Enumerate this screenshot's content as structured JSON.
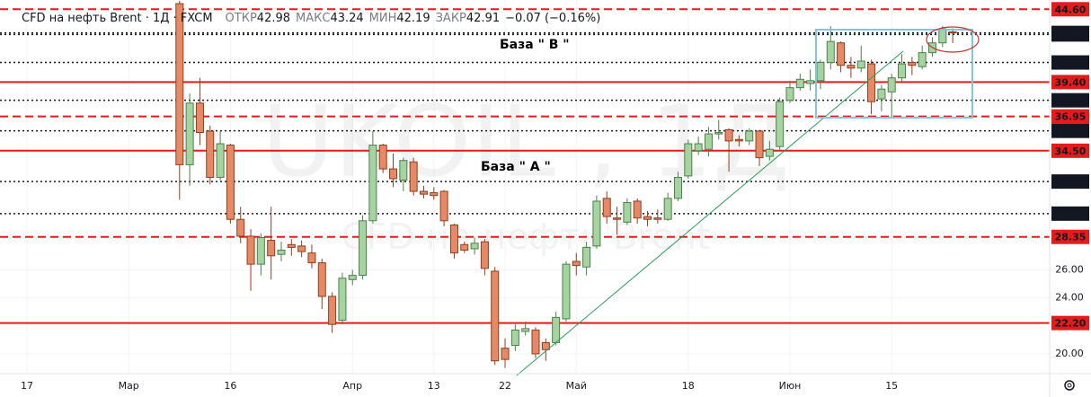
{
  "chart_data": {
    "type": "candlestick",
    "title": "CFD на нефть Brent · 1Д · FXCM",
    "header_info": [
      {
        "name": "ОТКР",
        "value": 42.98
      },
      {
        "name": "МАКС",
        "value": 43.24
      },
      {
        "name": "МИН",
        "value": 42.19
      },
      {
        "name": "ЗАКР",
        "value": 42.91
      }
    ],
    "change": {
      "value": -0.07,
      "label": "−0.07"
    },
    "change_pct": {
      "value": -0.16,
      "label": "(−0.16%)"
    },
    "watermark": [
      "UKOIL , 1Д",
      "CFD на нефть Brent"
    ],
    "annotations": [
      "База \" В \"",
      "База \" А \""
    ],
    "categories": [
      "17",
      null,
      null,
      null,
      null,
      null,
      null,
      null,
      null,
      null,
      "Мар",
      null,
      null,
      null,
      null,
      null,
      null,
      null,
      null,
      null,
      "16",
      null,
      null,
      null,
      null,
      null,
      null,
      null,
      null,
      null,
      null,
      null,
      "Апр",
      null,
      null,
      null,
      null,
      null,
      null,
      null,
      "13",
      null,
      null,
      null,
      null,
      null,
      null,
      "22",
      null,
      null,
      null,
      null,
      null,
      null,
      "Май",
      null,
      null,
      null,
      null,
      null,
      null,
      null,
      null,
      null,
      null,
      "18",
      null,
      null,
      null,
      null,
      null,
      null,
      null,
      null,
      null,
      "Июн",
      null,
      null,
      null,
      null,
      null,
      null,
      null,
      null,
      null,
      "15",
      null,
      null,
      null,
      null,
      null,
      null
    ],
    "open": [
      null,
      null,
      null,
      null,
      null,
      null,
      null,
      null,
      null,
      null,
      null,
      null,
      null,
      null,
      null,
      45.0,
      33.5,
      37.9,
      35.9,
      32.6,
      34.9,
      29.6,
      28.4,
      26.4,
      28.1,
      27.1,
      27.8,
      27.7,
      27.2,
      26.5,
      24.1,
      22.4,
      25.3,
      25.6,
      29.5,
      34.9,
      33.2,
      32.4,
      33.7,
      31.6,
      31.5,
      31.6,
      29.2,
      27.8,
      27.5,
      28.0,
      25.9,
      20.4,
      20.6,
      21.6,
      21.7,
      20.8,
      20.8,
      22.5,
      26.6,
      26.2,
      27.7,
      31.1,
      29.7,
      29.4,
      30.9,
      29.8,
      29.7,
      29.6,
      31.1,
      32.7,
      34.5,
      34.6,
      35.7,
      36.0,
      35.3,
      35.2,
      35.9,
      34.1,
      34.8,
      38.1,
      39.0,
      39.3,
      39.5,
      40.8,
      42.2,
      40.6,
      40.4,
      40.7,
      38.2,
      38.7,
      39.7,
      40.8,
      40.5,
      41.5,
      42.2,
      42.98
    ],
    "high": [
      null,
      null,
      null,
      null,
      null,
      null,
      null,
      null,
      null,
      null,
      null,
      null,
      null,
      null,
      null,
      45.2,
      38.6,
      39.7,
      36.3,
      35.9,
      35.0,
      30.5,
      28.9,
      28.6,
      30.5,
      28.0,
      28.2,
      28.1,
      27.8,
      26.8,
      24.4,
      25.8,
      26.0,
      29.9,
      35.9,
      35.0,
      34.3,
      34.0,
      34.0,
      32.0,
      31.9,
      31.7,
      29.3,
      28.0,
      28.3,
      28.2,
      26.2,
      21.1,
      22.1,
      22.3,
      21.9,
      21.1,
      23.0,
      26.6,
      27.2,
      28.0,
      31.3,
      31.6,
      30.5,
      31.1,
      31.1,
      30.2,
      30.3,
      31.5,
      33.0,
      35.3,
      35.5,
      36.2,
      36.7,
      36.1,
      35.6,
      36.1,
      36.0,
      35.2,
      38.3,
      39.5,
      40.0,
      40.3,
      41.0,
      43.4,
      42.3,
      41.2,
      42.0,
      41.0,
      39.2,
      40.0,
      41.4,
      41.2,
      42.0,
      42.6,
      43.4,
      43.24
    ],
    "low": [
      null,
      null,
      null,
      null,
      null,
      null,
      null,
      null,
      null,
      null,
      null,
      null,
      null,
      null,
      null,
      31.0,
      32.0,
      34.9,
      32.1,
      32.4,
      29.3,
      27.9,
      24.5,
      25.6,
      25.3,
      26.6,
      27.0,
      26.9,
      26.1,
      23.2,
      21.5,
      22.1,
      24.9,
      25.3,
      29.3,
      32.9,
      31.9,
      31.6,
      31.3,
      31.1,
      31.0,
      29.1,
      26.8,
      27.2,
      27.1,
      25.6,
      19.2,
      19.0,
      20.2,
      21.3,
      19.7,
      19.5,
      20.6,
      22.3,
      25.6,
      25.6,
      27.5,
      29.3,
      28.5,
      29.2,
      29.3,
      29.1,
      29.3,
      29.5,
      30.9,
      32.5,
      34.2,
      34.1,
      35.3,
      33.0,
      34.8,
      34.9,
      33.4,
      33.8,
      34.5,
      37.9,
      38.8,
      38.8,
      38.9,
      40.3,
      40.1,
      39.7,
      40.1,
      37.1,
      37.3,
      36.9,
      39.4,
      39.9,
      40.3,
      41.2,
      41.9,
      42.19
    ],
    "close": [
      null,
      null,
      null,
      null,
      null,
      null,
      null,
      null,
      null,
      null,
      null,
      null,
      null,
      null,
      null,
      33.5,
      37.9,
      35.8,
      32.6,
      35.0,
      29.6,
      28.4,
      26.4,
      28.3,
      27.0,
      27.4,
      27.6,
      27.3,
      26.5,
      24.1,
      22.1,
      25.4,
      25.6,
      29.5,
      34.9,
      33.2,
      32.5,
      33.8,
      31.6,
      31.4,
      31.3,
      29.5,
      27.2,
      27.4,
      27.9,
      26.1,
      19.5,
      19.6,
      21.7,
      21.8,
      20.0,
      20.3,
      22.6,
      26.4,
      26.3,
      27.6,
      30.9,
      29.8,
      29.6,
      30.8,
      29.7,
      29.6,
      29.6,
      31.1,
      32.6,
      35.0,
      35.0,
      35.7,
      35.8,
      35.2,
      35.2,
      35.9,
      34.0,
      34.6,
      38.0,
      39.0,
      39.6,
      39.5,
      40.8,
      42.3,
      40.6,
      40.4,
      40.9,
      38.0,
      38.9,
      39.7,
      40.7,
      40.6,
      41.5,
      42.2,
      43.2,
      42.91
    ],
    "up_color": "#a5d4a0",
    "up_border": "#4d7f4a",
    "down_color": "#e68a66",
    "down_border": "#8f3d20",
    "ylim": [
      18.65,
      45.26
    ],
    "yticks": [
      {
        "value": 20,
        "label": "20.00"
      },
      {
        "value": 24,
        "label": "24.00"
      },
      {
        "value": 26,
        "label": "26.00"
      }
    ],
    "grid": true,
    "levels": [
      {
        "value": 44.6,
        "label": "44.60",
        "color": "#e31b1b",
        "style": "dashed"
      },
      {
        "value": 42.91,
        "label": "42.91",
        "color": "#131722",
        "style": "dotted"
      },
      {
        "value": 42.8,
        "label": "42.80",
        "color": "#131722",
        "style": "dotted"
      },
      {
        "value": 40.8,
        "label": "40.80",
        "color": "#131722",
        "style": "dotted"
      },
      {
        "value": 39.4,
        "label": "39.40",
        "color": "#e31b1b",
        "style": "solid"
      },
      {
        "value": 38.1,
        "label": "38.10",
        "color": "#131722",
        "style": "dotted"
      },
      {
        "value": 36.95,
        "label": "36.95",
        "color": "#e31b1b",
        "style": "dashed"
      },
      {
        "value": 35.92,
        "label": "35.92",
        "color": "#131722",
        "style": "dotted"
      },
      {
        "value": 34.5,
        "label": "34.50",
        "color": "#e31b1b",
        "style": "solid"
      },
      {
        "value": 32.3,
        "label": "32.30",
        "color": "#131722",
        "style": "dotted"
      },
      {
        "value": 30.01,
        "label": "30.01",
        "color": "#131722",
        "style": "dotted"
      },
      {
        "value": 28.35,
        "label": "28.35",
        "color": "#e31b1b",
        "style": "dashed"
      },
      {
        "value": 22.2,
        "label": "22.20",
        "color": "#e31b1b",
        "style": "solid"
      }
    ]
  }
}
